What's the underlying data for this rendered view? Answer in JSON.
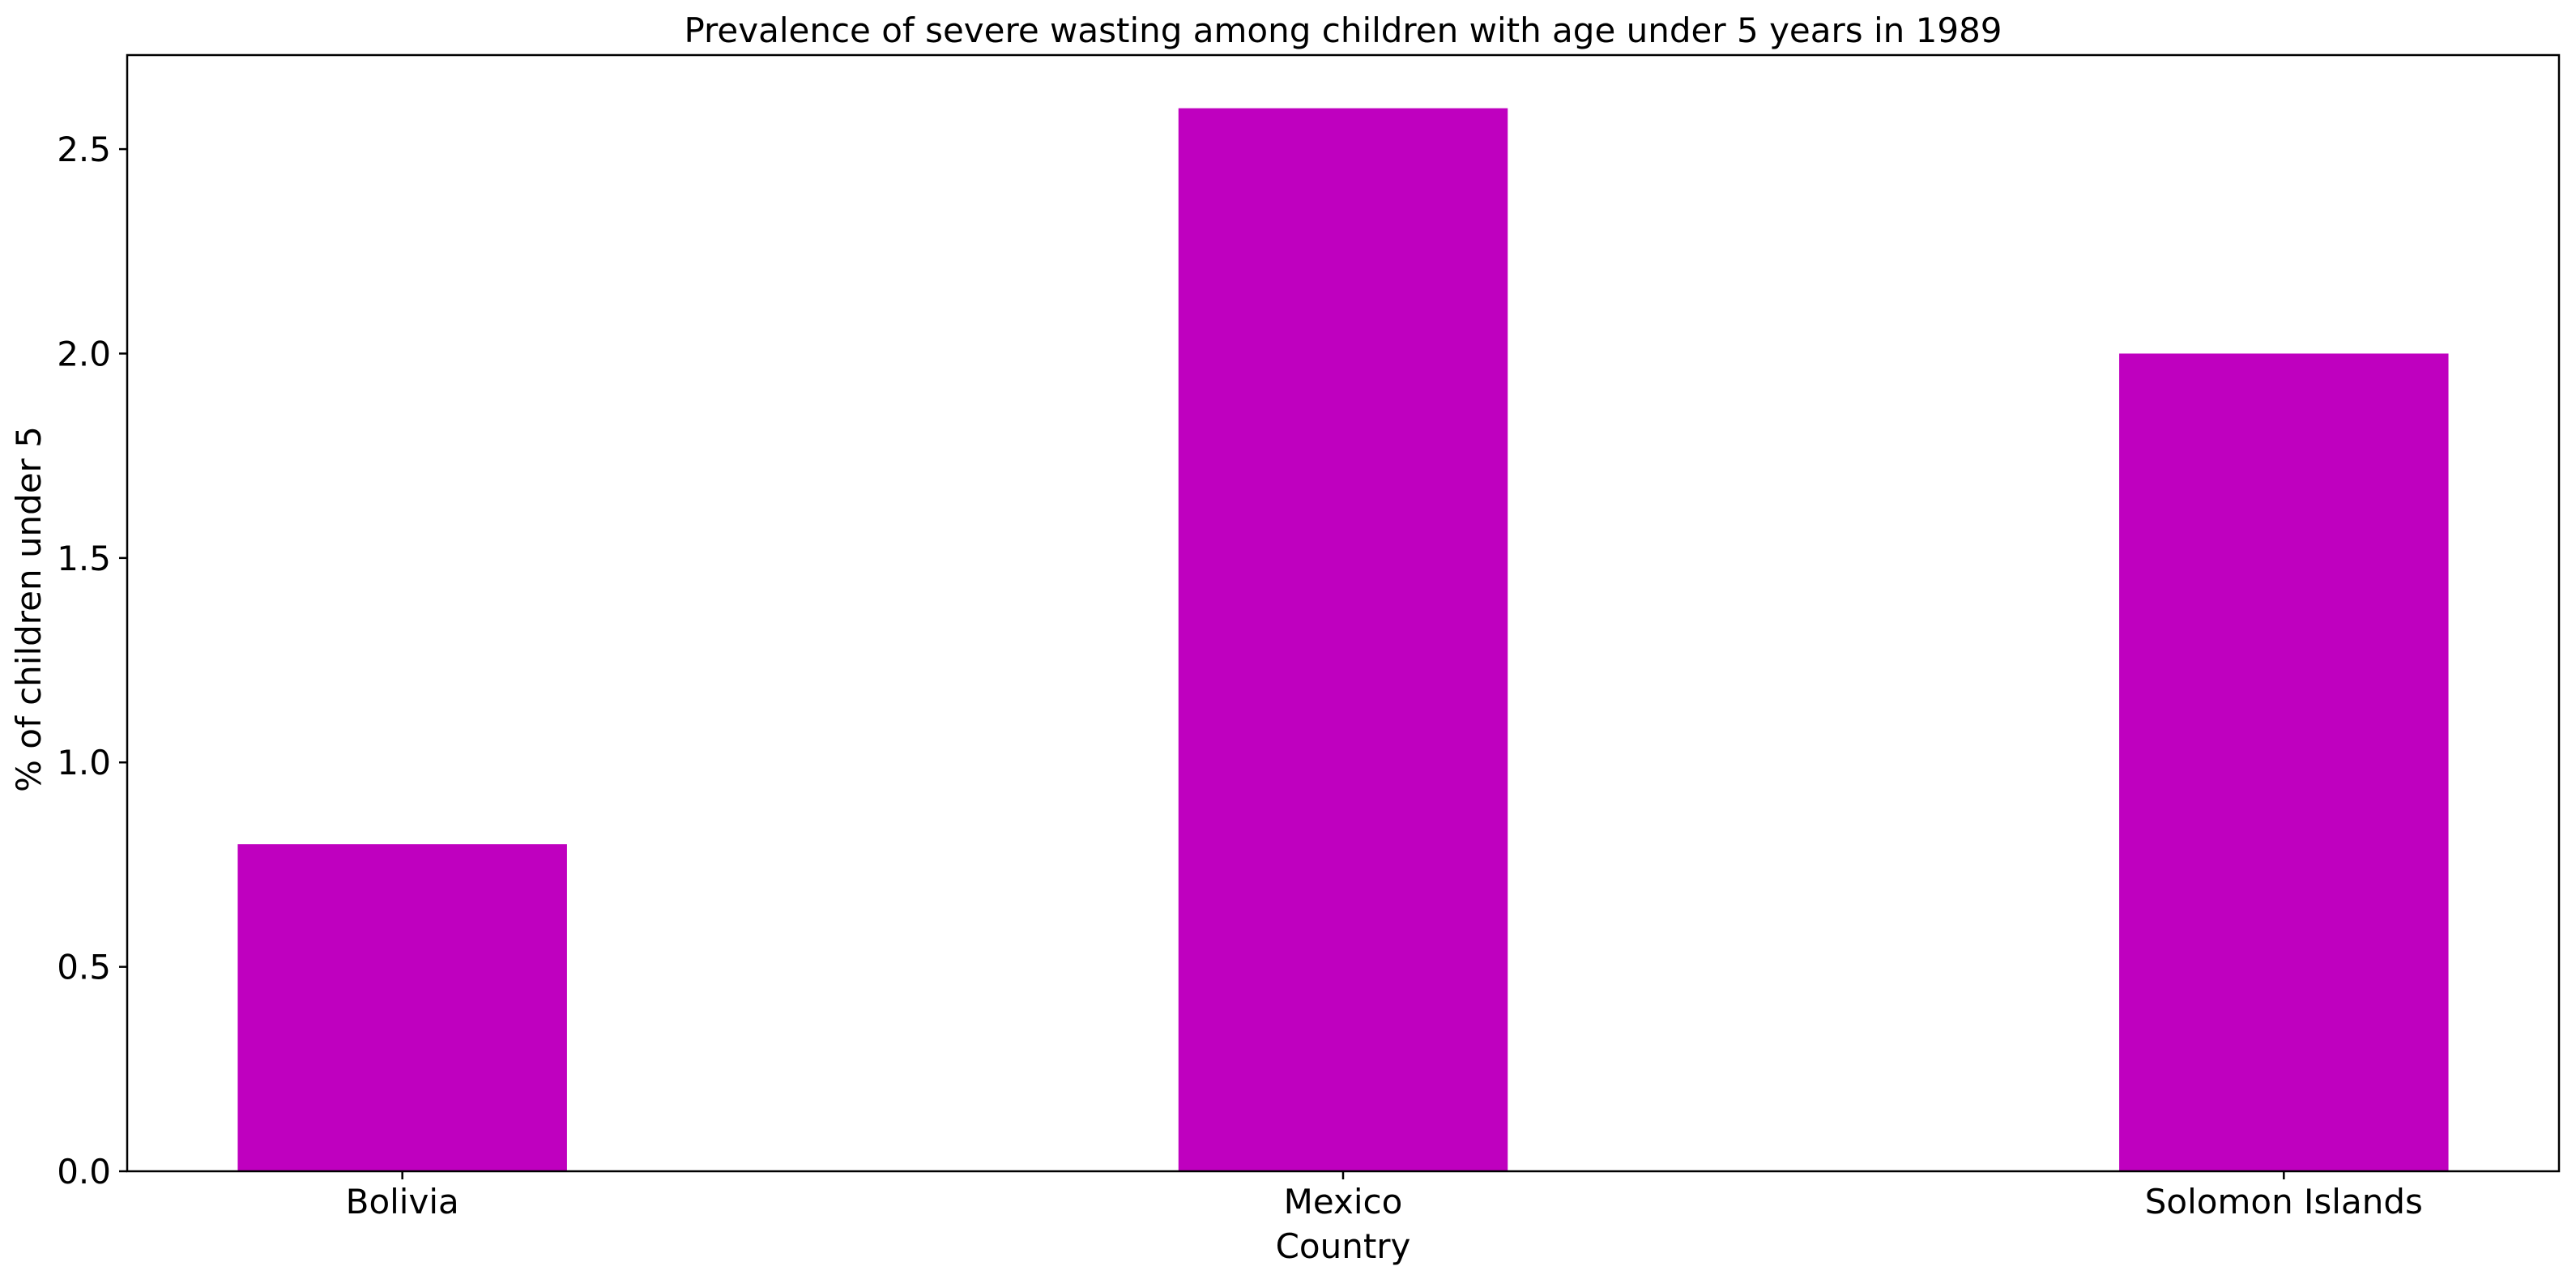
{
  "chart_data": {
    "type": "bar",
    "title": "Prevalence of severe wasting among children with age under 5 years in 1989",
    "xlabel": "Country",
    "ylabel": "% of children under 5",
    "categories": [
      "Bolivia",
      "Mexico",
      "Solomon Islands"
    ],
    "values": [
      0.8,
      2.6,
      2.0
    ],
    "ylim": [
      0,
      2.73
    ],
    "yticks": [
      "0.0",
      "0.5",
      "1.0",
      "1.5",
      "2.0",
      "2.5"
    ],
    "bar_color": "#bf00bf",
    "grid": false,
    "legend": "none"
  }
}
